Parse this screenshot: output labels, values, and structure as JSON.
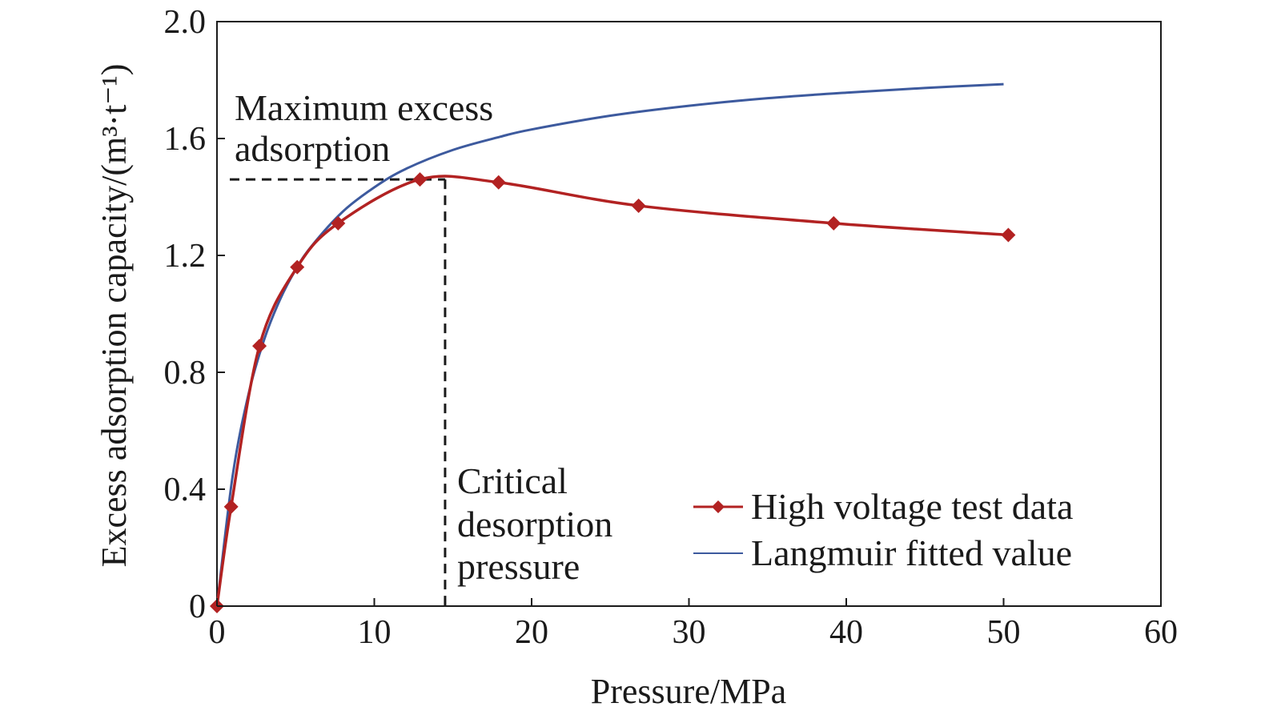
{
  "chart_data": {
    "type": "line",
    "title": "",
    "xlabel": "Pressure/MPa",
    "ylabel": "Excess adsorption capacity/(m³·t⁻¹)",
    "xlim": [
      0,
      60
    ],
    "ylim": [
      0,
      2.0
    ],
    "xticks": [
      "0",
      "10",
      "20",
      "30",
      "40",
      "50",
      "60"
    ],
    "yticks": [
      "0",
      "0.4",
      "0.8",
      "1.2",
      "1.6",
      "2.0"
    ],
    "grid": false,
    "legend_position": "bottom-right",
    "series": [
      {
        "name": "High voltage test data",
        "color": "#b22222",
        "marker": "diamond",
        "x": [
          0,
          0.9,
          2.7,
          5.1,
          7.7,
          12.9,
          17.9,
          26.8,
          39.2,
          50.3
        ],
        "y": [
          0,
          0.34,
          0.89,
          1.16,
          1.31,
          1.46,
          1.45,
          1.37,
          1.31,
          1.27
        ]
      },
      {
        "name": "Langmuir fitted value",
        "color": "#3d5a9e",
        "marker": "none",
        "x": [
          0,
          1,
          2,
          3,
          4,
          5,
          6,
          8,
          10,
          12,
          15,
          18,
          20,
          25,
          30,
          35,
          40,
          45,
          50
        ],
        "y": [
          0,
          0.447,
          0.724,
          0.912,
          1.048,
          1.151,
          1.231,
          1.35,
          1.433,
          1.496,
          1.561,
          1.606,
          1.631,
          1.678,
          1.712,
          1.738,
          1.757,
          1.773,
          1.786
        ]
      }
    ],
    "annotations": [
      {
        "text_lines": [
          "Maximum excess",
          "adsorption"
        ],
        "x": 14.5,
        "y": 1.46
      },
      {
        "text_lines": [
          "Critical",
          "desorption",
          "pressure"
        ],
        "x": 14.5,
        "y": 1.46
      }
    ],
    "reference_point": {
      "x": 14.5,
      "y": 1.46
    }
  }
}
